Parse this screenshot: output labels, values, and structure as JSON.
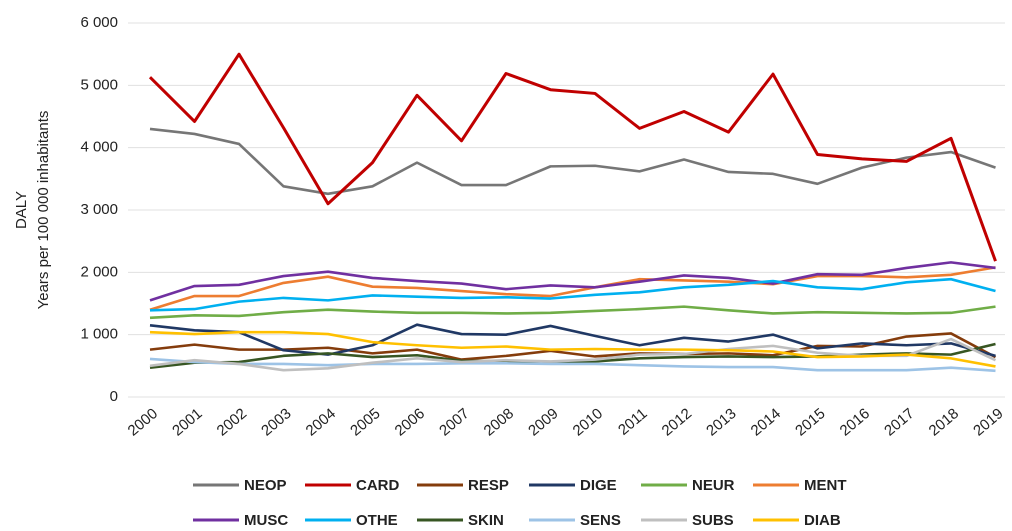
{
  "chart_data": {
    "type": "line",
    "y_label_lines": [
      "DALY",
      "Years per 100 000 inhabitants"
    ],
    "categories": [
      "2000",
      "2001",
      "2002",
      "2003",
      "2004",
      "2005",
      "2006",
      "2007",
      "2008",
      "2009",
      "2010",
      "2011",
      "2012",
      "2013",
      "2014",
      "2015",
      "2016",
      "2017",
      "2018",
      "2019"
    ],
    "ylim": [
      0,
      6000
    ],
    "yticks": [
      0,
      {
        "value": 1000,
        "label": "1 000"
      },
      {
        "value": 2000,
        "label": "2 000"
      },
      {
        "value": 3000,
        "label": "3 000"
      },
      {
        "value": 4000,
        "label": "4 000"
      },
      {
        "value": 5000,
        "label": "5 000"
      },
      {
        "value": 6000,
        "label": "6 000"
      }
    ],
    "grid": true,
    "legend": "bottom",
    "series": [
      {
        "name": "NEOP",
        "color": "#767676",
        "values": [
          4300,
          4220,
          4060,
          3380,
          3260,
          3380,
          3760,
          3400,
          3400,
          3700,
          3710,
          3620,
          3810,
          3610,
          3580,
          3420,
          3680,
          3840,
          3930,
          3680
        ]
      },
      {
        "name": "CARD",
        "color": "#c00000",
        "values": [
          5130,
          4420,
          5500,
          4320,
          3100,
          3760,
          4840,
          4110,
          5190,
          4930,
          4870,
          4310,
          4580,
          4250,
          5180,
          3890,
          3820,
          3780,
          4150,
          2180
        ]
      },
      {
        "name": "RESP",
        "color": "#843c0c",
        "values": [
          760,
          840,
          760,
          760,
          790,
          700,
          760,
          600,
          660,
          740,
          650,
          700,
          690,
          700,
          670,
          820,
          810,
          970,
          1020,
          640
        ]
      },
      {
        "name": "DIGE",
        "color": "#203864",
        "values": [
          1150,
          1070,
          1040,
          750,
          680,
          830,
          1160,
          1010,
          1000,
          1140,
          980,
          830,
          950,
          890,
          1000,
          780,
          860,
          830,
          860,
          660
        ]
      },
      {
        "name": "NEUR",
        "color": "#70ad47",
        "values": [
          1270,
          1310,
          1300,
          1360,
          1400,
          1370,
          1350,
          1350,
          1340,
          1350,
          1380,
          1410,
          1450,
          1390,
          1340,
          1360,
          1350,
          1340,
          1350,
          1450
        ]
      },
      {
        "name": "MENT",
        "color": "#ed7d31",
        "values": [
          1400,
          1620,
          1620,
          1830,
          1930,
          1770,
          1750,
          1700,
          1650,
          1620,
          1760,
          1890,
          1870,
          1850,
          1810,
          1940,
          1940,
          1920,
          1960,
          2080
        ]
      },
      {
        "name": "MUSC",
        "color": "#7030a0",
        "values": [
          1550,
          1780,
          1800,
          1940,
          2010,
          1910,
          1860,
          1820,
          1730,
          1790,
          1760,
          1850,
          1950,
          1910,
          1820,
          1970,
          1960,
          2070,
          2160,
          2070
        ]
      },
      {
        "name": "OTHE",
        "color": "#00b0f0",
        "values": [
          1390,
          1410,
          1530,
          1590,
          1550,
          1630,
          1610,
          1590,
          1600,
          1580,
          1640,
          1680,
          1760,
          1800,
          1860,
          1760,
          1730,
          1840,
          1890,
          1700
        ]
      },
      {
        "name": "SKIN",
        "color": "#375623",
        "values": [
          470,
          550,
          560,
          660,
          700,
          640,
          670,
          580,
          570,
          560,
          570,
          620,
          640,
          650,
          640,
          650,
          680,
          700,
          680,
          850
        ]
      },
      {
        "name": "SENS",
        "color": "#9dc3e6",
        "values": [
          610,
          560,
          530,
          530,
          510,
          530,
          530,
          540,
          540,
          530,
          530,
          510,
          490,
          480,
          480,
          430,
          430,
          430,
          470,
          420
        ]
      },
      {
        "name": "SUBS",
        "color": "#bfbfbf",
        "values": [
          500,
          590,
          530,
          430,
          460,
          550,
          620,
          560,
          590,
          570,
          600,
          680,
          690,
          770,
          820,
          710,
          660,
          660,
          930,
          590
        ]
      },
      {
        "name": "DIAB",
        "color": "#ffc000",
        "values": [
          1040,
          1010,
          1040,
          1040,
          1010,
          880,
          830,
          790,
          810,
          760,
          770,
          760,
          760,
          750,
          730,
          640,
          650,
          680,
          620,
          490
        ]
      }
    ]
  }
}
